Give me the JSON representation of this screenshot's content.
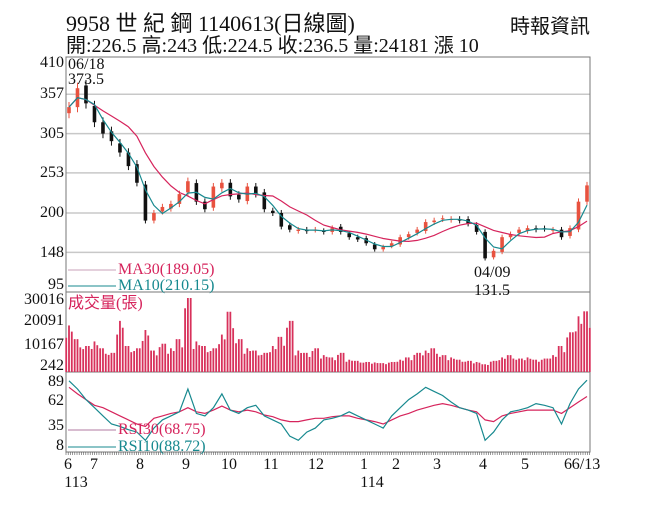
{
  "header": {
    "title": "9958  世 紀 鋼 1140613(日線圖)",
    "ohlc": "開:226.5 高:243 低:224.5 收:236.5 量:24181 漲 10",
    "brand": "時報資訊"
  },
  "colors": {
    "up": "#e8523f",
    "down": "#111111",
    "ma30": "#d6245c",
    "ma10": "#17898f",
    "volume": "#d8315b",
    "rsi30": "#d6245c",
    "rsi10": "#17898f",
    "grid": "#c8c8c8"
  },
  "chart_data": [
    {
      "type": "candlestick",
      "yticks": [
        "410",
        "357",
        "305",
        "253",
        "200",
        "148",
        "95"
      ],
      "ylim": [
        95,
        410
      ],
      "annotations": {
        "high": {
          "date": "06/18",
          "value": "373.5"
        },
        "low": {
          "date": "04/09",
          "value": "131.5"
        }
      },
      "legend": {
        "ma30": "MA30(189.05)",
        "ma10": "MA10(210.15)"
      },
      "close": [
        340,
        365,
        345,
        320,
        305,
        295,
        280,
        262,
        240,
        190,
        200,
        208,
        212,
        225,
        242,
        215,
        205,
        235,
        240,
        222,
        218,
        235,
        225,
        205,
        200,
        182,
        178,
        178,
        176,
        178,
        175,
        180,
        175,
        168,
        165,
        160,
        152,
        155,
        160,
        168,
        172,
        178,
        188,
        190,
        193,
        192,
        190,
        186,
        175,
        140,
        150,
        168,
        172,
        178,
        180,
        178,
        179,
        178,
        168,
        180,
        215,
        236.5
      ]
    },
    {
      "type": "bar",
      "title": "成交量(張)",
      "yticks": [
        "30016",
        "20091",
        "10167",
        "242"
      ],
      "ylim": [
        242,
        30016
      ],
      "values": [
        18000,
        12000,
        9000,
        11000,
        8000,
        6000,
        20000,
        9000,
        8000,
        16000,
        7000,
        10000,
        8000,
        12000,
        30016,
        11000,
        9000,
        8000,
        14000,
        24000,
        12000,
        8000,
        7000,
        6000,
        9000,
        13000,
        20000,
        7000,
        6000,
        8000,
        5000,
        4000,
        6000,
        3000,
        2500,
        2000,
        1800,
        1500,
        2000,
        3000,
        4000,
        6000,
        7000,
        8000,
        5000,
        4000,
        3000,
        2500,
        2000,
        1000,
        2500,
        4000,
        5000,
        3500,
        4000,
        3000,
        3500,
        5000,
        9000,
        15000,
        22000,
        24181
      ]
    },
    {
      "type": "line",
      "yticks": [
        "89",
        "62",
        "35",
        "8"
      ],
      "ylim": [
        8,
        89
      ],
      "legend": {
        "rsi30": "RSI30(68.75)",
        "rsi10": "RSI10(88.72)"
      },
      "rsi10": [
        88,
        78,
        65,
        55,
        45,
        35,
        32,
        28,
        25,
        15,
        30,
        40,
        45,
        50,
        78,
        48,
        45,
        55,
        72,
        52,
        48,
        55,
        58,
        45,
        40,
        35,
        20,
        15,
        25,
        30,
        40,
        42,
        45,
        50,
        45,
        40,
        35,
        30,
        45,
        55,
        65,
        72,
        80,
        75,
        70,
        62,
        55,
        52,
        48,
        15,
        25,
        40,
        50,
        52,
        55,
        60,
        58,
        55,
        35,
        60,
        78,
        88.72
      ],
      "rsi30": [
        80,
        72,
        65,
        58,
        55,
        50,
        45,
        40,
        35,
        32,
        42,
        45,
        48,
        50,
        55,
        50,
        48,
        52,
        57,
        52,
        50,
        52,
        50,
        46,
        44,
        40,
        38,
        38,
        40,
        42,
        42,
        44,
        45,
        45,
        42,
        40,
        38,
        35,
        40,
        45,
        48,
        52,
        55,
        58,
        60,
        58,
        55,
        52,
        50,
        40,
        38,
        45,
        48,
        50,
        52,
        52,
        52,
        52,
        48,
        55,
        62,
        68.75
      ]
    }
  ],
  "xaxis": {
    "months": [
      "6",
      "7",
      "8",
      "9",
      "10",
      "11",
      "12",
      "1",
      "2",
      "3",
      "4",
      "5",
      "6",
      "6/13"
    ],
    "years": [
      "113",
      "114"
    ]
  }
}
